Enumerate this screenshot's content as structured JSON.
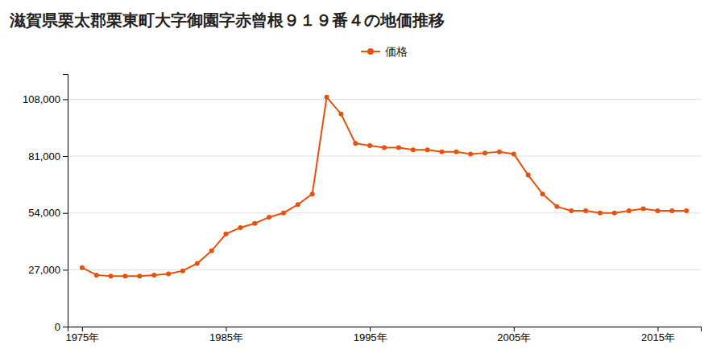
{
  "chart_data": {
    "type": "line",
    "title": "滋賀県栗太郡栗東町大字御園字赤曾根９１９番４の地価推移",
    "x": [
      1975,
      1976,
      1977,
      1978,
      1979,
      1980,
      1981,
      1982,
      1983,
      1984,
      1985,
      1986,
      1987,
      1988,
      1989,
      1990,
      1991,
      1992,
      1993,
      1994,
      1995,
      1996,
      1997,
      1998,
      1999,
      2000,
      2001,
      2002,
      2003,
      2004,
      2005,
      2006,
      2007,
      2008,
      2009,
      2010,
      2011,
      2012,
      2013,
      2014,
      2015,
      2016,
      2017
    ],
    "series": [
      {
        "name": "価格",
        "color": "#E8510A",
        "marker": "circle",
        "values": [
          28000,
          24500,
          24000,
          24000,
          24000,
          24500,
          25000,
          26500,
          30000,
          36000,
          44000,
          47000,
          49000,
          52000,
          54000,
          58000,
          63000,
          109000,
          101000,
          87000,
          86000,
          85000,
          85000,
          84000,
          84000,
          83000,
          83000,
          82000,
          82500,
          83000,
          82000,
          72000,
          63000,
          57000,
          55000,
          55000,
          54000,
          54000,
          55000,
          56000,
          55000,
          55000,
          55000
        ]
      }
    ],
    "xlim": [
      1974,
      2018
    ],
    "xticks": [
      {
        "value": 1975,
        "label": "1975年"
      },
      {
        "value": 1985,
        "label": "1985年"
      },
      {
        "value": 1995,
        "label": "1995年"
      },
      {
        "value": 2005,
        "label": "2005年"
      },
      {
        "value": 2015,
        "label": "2015年"
      }
    ],
    "ylim": [
      0,
      120000
    ],
    "yticks": [
      0,
      {
        "value": 27000,
        "label": "27,000"
      },
      {
        "value": 54000,
        "label": "54,000"
      },
      {
        "value": 81000,
        "label": "81,000"
      },
      {
        "value": 108000,
        "label": "108,000"
      }
    ],
    "grid": true,
    "legend": "top"
  }
}
